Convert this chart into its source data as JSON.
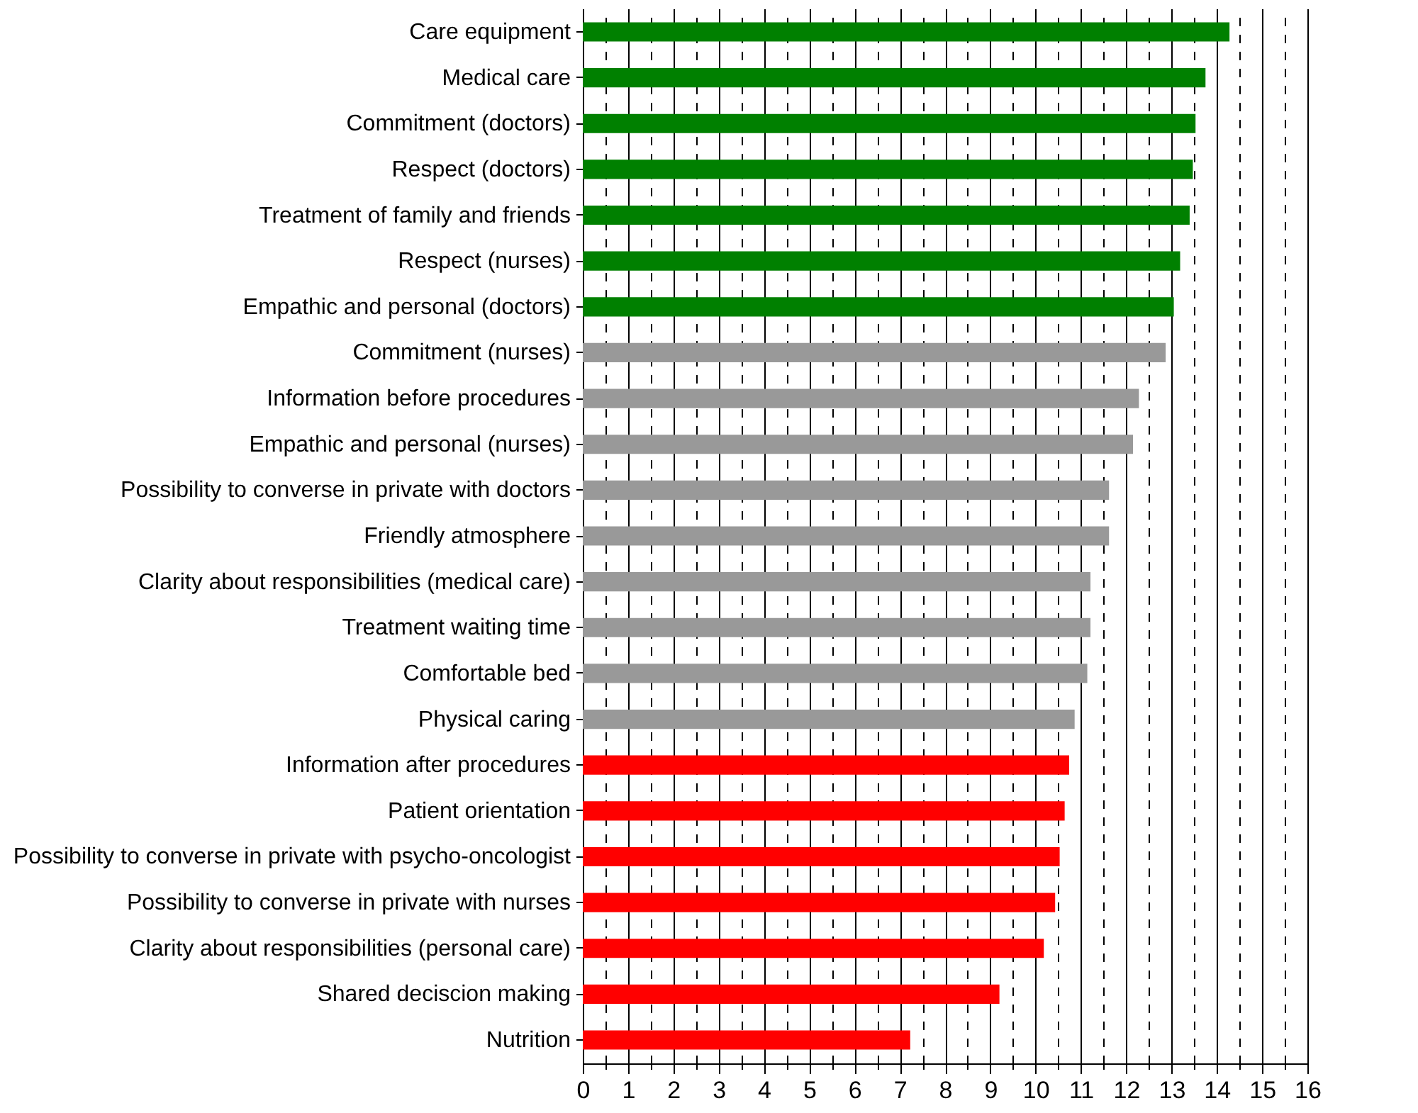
{
  "chart_data": {
    "type": "bar",
    "orientation": "horizontal",
    "categories": [
      "Care equipment",
      "Medical care",
      "Commitment (doctors)",
      "Respect (doctors)",
      "Treatment of family and friends",
      "Respect (nurses)",
      "Empathic and personal (doctors)",
      "Commitment (nurses)",
      "Information before procedures",
      "Empathic and personal (nurses)",
      "Possibility to converse in private with doctors",
      "Friendly atmosphere",
      "Clarity about responsibilities (medical care)",
      "Treatment waiting time",
      "Comfortable bed",
      "Physical caring",
      "Information after procedures",
      "Patient orientation",
      "Possibility to converse in private with psycho-oncologist",
      "Possibility to converse in private with nurses",
      "Clarity about responsibilities (personal care)",
      "Shared deciscion making",
      "Nutrition"
    ],
    "values": [
      14.28,
      13.75,
      13.53,
      13.47,
      13.4,
      13.19,
      13.05,
      12.87,
      12.28,
      12.15,
      11.62,
      11.62,
      11.21,
      11.21,
      11.14,
      10.86,
      10.74,
      10.64,
      10.53,
      10.43,
      10.18,
      9.2,
      7.23
    ],
    "colors": [
      "#008000",
      "#008000",
      "#008000",
      "#008000",
      "#008000",
      "#008000",
      "#008000",
      "#999999",
      "#999999",
      "#999999",
      "#999999",
      "#999999",
      "#999999",
      "#999999",
      "#999999",
      "#999999",
      "#ff0000",
      "#ff0000",
      "#ff0000",
      "#ff0000",
      "#ff0000",
      "#ff0000",
      "#ff0000"
    ],
    "xlim": [
      0,
      16
    ],
    "xticks": [
      0,
      {
        "value": 0.5,
        "label": null
      },
      1,
      {
        "value": 1.5,
        "label": null
      },
      2,
      {
        "value": 2.5,
        "label": null
      },
      3,
      {
        "value": 3.5,
        "label": null
      },
      4,
      {
        "value": 4.5,
        "label": null
      },
      5,
      {
        "value": 5.5,
        "label": null
      },
      6,
      {
        "value": 6.5,
        "label": null
      },
      7,
      {
        "value": 7.5,
        "label": null
      },
      8,
      {
        "value": 8.5,
        "label": null
      },
      9,
      {
        "value": 9.5,
        "label": null
      },
      10,
      {
        "value": 10.5,
        "label": null
      },
      11,
      {
        "value": 11.5,
        "label": null
      },
      12,
      {
        "value": 12.5,
        "label": null
      },
      13,
      {
        "value": 13.5,
        "label": null
      },
      14,
      {
        "value": 14.5,
        "label": null
      },
      15,
      {
        "value": 15.5,
        "label": null
      },
      16
    ],
    "grid": "x"
  }
}
